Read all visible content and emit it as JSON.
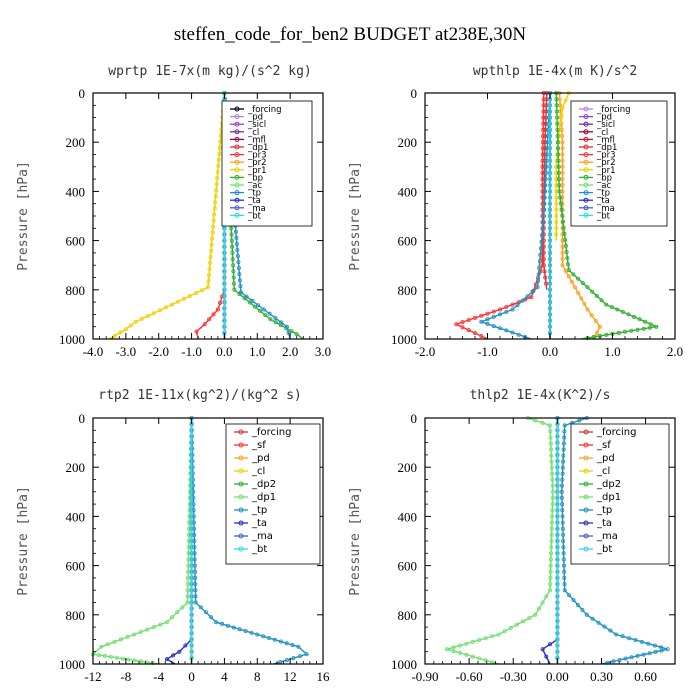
{
  "title": "steffen_code_for_ben2  BUDGET at238E,30N",
  "chart_data": [
    {
      "type": "line",
      "title": "wprtp   1E-7x(m kg)/(s^2 kg)",
      "ylabel": "Pressure [hPa]",
      "xlim": [
        -4,
        3
      ],
      "ylim": [
        1000,
        0
      ],
      "xticks": [
        -4,
        -3,
        -2,
        -1,
        0,
        1,
        2,
        3
      ],
      "xtick_labels": [
        "-4.0",
        "-3.0",
        "-2.0",
        "-1.0",
        "0.0",
        "1.0",
        "2.0",
        "3.0"
      ],
      "yticks": [
        0,
        200,
        400,
        600,
        800,
        1000
      ],
      "legend": "top-right",
      "series": [
        {
          "name": "_forcing",
          "color": "#000000",
          "x": [
            0,
            0,
            0
          ],
          "y": [
            0,
            500,
            1000
          ]
        },
        {
          "name": "_pd",
          "color": "#c080d8",
          "x": [
            0,
            0,
            0
          ],
          "y": [
            0,
            500,
            1000
          ]
        },
        {
          "name": "_sicl",
          "color": "#9a40c0",
          "x": [
            0,
            0,
            0
          ],
          "y": [
            0,
            500,
            1000
          ]
        },
        {
          "name": "_cl",
          "color": "#7030a0",
          "x": [
            0,
            0,
            0
          ],
          "y": [
            0,
            500,
            1000
          ]
        },
        {
          "name": "_mfl",
          "color": "#a00040",
          "x": [
            0,
            0,
            0
          ],
          "y": [
            0,
            500,
            1000
          ]
        },
        {
          "name": "_dp1",
          "color": "#e03030",
          "x": [
            0,
            0,
            0
          ],
          "y": [
            0,
            500,
            1000
          ]
        },
        {
          "name": "_pr3",
          "color": "#ff3030",
          "x": [
            0,
            0,
            -0.2,
            -0.6,
            -0.85,
            -0.8
          ],
          "y": [
            0,
            800,
            880,
            940,
            970,
            1000
          ]
        },
        {
          "name": "_pr2",
          "color": "#ffa020",
          "x": [
            0,
            0,
            0
          ],
          "y": [
            0,
            500,
            1000
          ]
        },
        {
          "name": "_pr1",
          "color": "#f0d000",
          "x": [
            0,
            -0.5,
            -1.6,
            -2.7,
            -3.0,
            -3.5
          ],
          "y": [
            0,
            790,
            860,
            930,
            960,
            1000
          ]
        },
        {
          "name": "_bp",
          "color": "#30b030",
          "x": [
            0,
            0.3,
            1.4,
            2.2,
            2.4
          ],
          "y": [
            0,
            800,
            920,
            980,
            1000
          ]
        },
        {
          "name": "_ac",
          "color": "#70e070",
          "x": [
            0,
            0,
            0
          ],
          "y": [
            0,
            500,
            1000
          ]
        },
        {
          "name": "_tp",
          "color": "#2090c0",
          "x": [
            0,
            0.5,
            1.2,
            1.9,
            2.0
          ],
          "y": [
            0,
            810,
            880,
            950,
            1000
          ]
        },
        {
          "name": "_ta",
          "color": "#2030c0",
          "x": [
            0,
            0,
            0
          ],
          "y": [
            0,
            500,
            1000
          ]
        },
        {
          "name": "_ma",
          "color": "#4060d0",
          "x": [
            0,
            0,
            0
          ],
          "y": [
            0,
            500,
            1000
          ]
        },
        {
          "name": "_bt",
          "color": "#30d8e8",
          "x": [
            0,
            0,
            0
          ],
          "y": [
            0,
            500,
            1000
          ]
        }
      ]
    },
    {
      "type": "line",
      "title": "wpthlp   1E-4x(m K)/s^2",
      "ylabel": "Pressure [hPa]",
      "xlim": [
        -2,
        2
      ],
      "ylim": [
        1000,
        0
      ],
      "xticks": [
        -2,
        -1,
        0,
        1,
        2
      ],
      "xtick_labels": [
        "-2.0",
        "-1.0",
        "0.0",
        "1.0",
        "2.0"
      ],
      "yticks": [
        0,
        200,
        400,
        600,
        800,
        1000
      ],
      "legend": "top-right",
      "series": [
        {
          "name": "_forcing",
          "color": "#c080d8",
          "x": [
            0,
            0,
            0
          ],
          "y": [
            0,
            500,
            1000
          ]
        },
        {
          "name": "_pd",
          "color": "#9a40c0",
          "x": [
            0,
            0,
            0
          ],
          "y": [
            0,
            500,
            1000
          ]
        },
        {
          "name": "_sicl",
          "color": "#7030a0",
          "x": [
            0,
            0,
            0
          ],
          "y": [
            0,
            500,
            1000
          ]
        },
        {
          "name": "_cl",
          "color": "#a00040",
          "x": [
            0,
            0,
            0
          ],
          "y": [
            0,
            500,
            1000
          ]
        },
        {
          "name": "_mfl",
          "color": "#c02020",
          "x": [
            0,
            0,
            0
          ],
          "y": [
            0,
            500,
            1000
          ]
        },
        {
          "name": "_dp1",
          "color": "#e03030",
          "x": [
            -0.05,
            -0.08,
            -0.1,
            -0.1,
            -0.05
          ],
          "y": [
            0,
            200,
            500,
            700,
            800
          ]
        },
        {
          "name": "_pr3",
          "color": "#ff3030",
          "x": [
            -0.1,
            -0.12,
            -0.12,
            -0.3,
            -0.8,
            -1.5,
            -1.0
          ],
          "y": [
            0,
            300,
            700,
            830,
            880,
            940,
            1000
          ]
        },
        {
          "name": "_pr2",
          "color": "#ffa020",
          "x": [
            0.15,
            0.2,
            0.2,
            0.6,
            0.8,
            0.7
          ],
          "y": [
            0,
            200,
            700,
            880,
            950,
            1000
          ]
        },
        {
          "name": "_pr1",
          "color": "#f0d000",
          "x": [
            0.3,
            0.2,
            0.15,
            0.1,
            0.1
          ],
          "y": [
            0,
            60,
            150,
            300,
            600
          ]
        },
        {
          "name": "_bp",
          "color": "#30b030",
          "x": [
            0.1,
            0.15,
            0.3,
            0.9,
            1.7,
            0.5
          ],
          "y": [
            0,
            400,
            720,
            860,
            950,
            1000
          ]
        },
        {
          "name": "_ac",
          "color": "#70e070",
          "x": [
            0,
            0,
            0
          ],
          "y": [
            0,
            500,
            1000
          ]
        },
        {
          "name": "_tp",
          "color": "#2090c0",
          "x": [
            0,
            -0.1,
            -0.2,
            -0.6,
            -1.1,
            -0.3
          ],
          "y": [
            0,
            500,
            790,
            880,
            930,
            1000
          ]
        },
        {
          "name": "_ta",
          "color": "#2030c0",
          "x": [
            0,
            0,
            0
          ],
          "y": [
            0,
            500,
            1000
          ]
        },
        {
          "name": "_ma",
          "color": "#4060d0",
          "x": [
            0,
            0,
            0
          ],
          "y": [
            0,
            500,
            1000
          ]
        },
        {
          "name": "_bt",
          "color": "#30d8e8",
          "x": [
            0,
            0,
            0
          ],
          "y": [
            0,
            500,
            1000
          ]
        }
      ]
    },
    {
      "type": "line",
      "title": "rtp2   1E-11x(kg^2)/(kg^2 s)",
      "ylabel": "Pressure [hPa]",
      "xlim": [
        -12,
        16
      ],
      "ylim": [
        1000,
        0
      ],
      "xticks": [
        -12,
        -8,
        -4,
        0,
        4,
        8,
        12,
        16
      ],
      "xtick_labels": [
        "-12",
        "-8",
        "-4",
        "0",
        "4",
        "8",
        "12",
        "16"
      ],
      "yticks": [
        0,
        200,
        400,
        600,
        800,
        1000
      ],
      "legend": "top-right",
      "series": [
        {
          "name": "_forcing",
          "color": "#e03030",
          "x": [
            0,
            0,
            0
          ],
          "y": [
            0,
            500,
            1000
          ]
        },
        {
          "name": "_sf",
          "color": "#ff3030",
          "x": [
            0,
            0,
            0
          ],
          "y": [
            0,
            500,
            1000
          ]
        },
        {
          "name": "_pd",
          "color": "#ffa020",
          "x": [
            0,
            0,
            0
          ],
          "y": [
            0,
            500,
            1000
          ]
        },
        {
          "name": "_cl",
          "color": "#f0d000",
          "x": [
            0,
            0,
            0
          ],
          "y": [
            0,
            500,
            1000
          ]
        },
        {
          "name": "_dp2",
          "color": "#30b030",
          "x": [
            0,
            0,
            0
          ],
          "y": [
            0,
            500,
            1000
          ]
        },
        {
          "name": "_dp1",
          "color": "#70e070",
          "x": [
            0,
            -0.5,
            -3,
            -7,
            -11,
            -12,
            -4
          ],
          "y": [
            0,
            750,
            830,
            880,
            930,
            960,
            1000
          ]
        },
        {
          "name": "_tp",
          "color": "#2090c0",
          "x": [
            0,
            0.5,
            3,
            8,
            13,
            14,
            10
          ],
          "y": [
            0,
            750,
            830,
            880,
            930,
            960,
            1000
          ]
        },
        {
          "name": "_ta",
          "color": "#2030c0",
          "x": [
            0,
            0,
            -1.5,
            -3,
            -2
          ],
          "y": [
            0,
            900,
            950,
            980,
            1000
          ]
        },
        {
          "name": "_ma",
          "color": "#4060d0",
          "x": [
            0,
            0,
            0
          ],
          "y": [
            0,
            500,
            1000
          ]
        },
        {
          "name": "_bt",
          "color": "#30d8e8",
          "x": [
            0,
            0,
            0
          ],
          "y": [
            0,
            500,
            1000
          ]
        }
      ]
    },
    {
      "type": "line",
      "title": "thlp2   1E-4x(K^2)/s",
      "ylabel": "Pressure [hPa]",
      "xlim": [
        -0.9,
        0.8
      ],
      "ylim": [
        1000,
        0
      ],
      "xticks": [
        -0.9,
        -0.6,
        -0.3,
        0,
        0.3,
        0.6
      ],
      "xtick_labels": [
        "-0.90",
        "-0.60",
        "-0.30",
        "0.00",
        "0.30",
        "0.60"
      ],
      "yticks": [
        0,
        200,
        400,
        600,
        800,
        1000
      ],
      "legend": "top-right",
      "series": [
        {
          "name": "_forcing",
          "color": "#e03030",
          "x": [
            0,
            0,
            0
          ],
          "y": [
            0,
            500,
            1000
          ]
        },
        {
          "name": "_sf",
          "color": "#ff3030",
          "x": [
            0,
            0,
            0
          ],
          "y": [
            0,
            500,
            1000
          ]
        },
        {
          "name": "_pd",
          "color": "#ffa020",
          "x": [
            0,
            0,
            0
          ],
          "y": [
            0,
            500,
            1000
          ]
        },
        {
          "name": "_cl",
          "color": "#f0d000",
          "x": [
            0,
            0,
            0
          ],
          "y": [
            0,
            500,
            1000
          ]
        },
        {
          "name": "_dp2",
          "color": "#30b030",
          "x": [
            0,
            0,
            0
          ],
          "y": [
            0,
            500,
            1000
          ]
        },
        {
          "name": "_dp1",
          "color": "#70e070",
          "x": [
            -0.2,
            -0.05,
            -0.03,
            -0.05,
            -0.15,
            -0.4,
            -0.75,
            -0.4
          ],
          "y": [
            0,
            30,
            300,
            700,
            800,
            880,
            940,
            1000
          ]
        },
        {
          "name": "_tp",
          "color": "#2090c0",
          "x": [
            0.2,
            0.05,
            0.03,
            0.05,
            0.2,
            0.4,
            0.75,
            0.3
          ],
          "y": [
            0,
            30,
            300,
            700,
            800,
            880,
            940,
            1000
          ]
        },
        {
          "name": "_ta",
          "color": "#2030c0",
          "x": [
            0,
            0,
            -0.1,
            -0.05
          ],
          "y": [
            0,
            900,
            940,
            1000
          ]
        },
        {
          "name": "_ma",
          "color": "#4060d0",
          "x": [
            0,
            0,
            0
          ],
          "y": [
            0,
            500,
            1000
          ]
        },
        {
          "name": "_bt",
          "color": "#30d8e8",
          "x": [
            0,
            0,
            0
          ],
          "y": [
            0,
            500,
            1000
          ]
        }
      ]
    }
  ]
}
